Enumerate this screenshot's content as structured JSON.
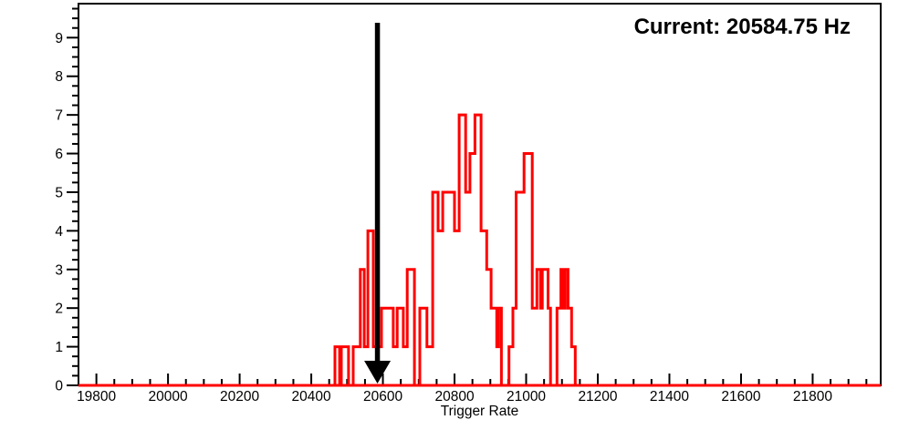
{
  "page": {
    "background": "#ffffff"
  },
  "chart_data": {
    "type": "bar",
    "subtype": "step-histogram",
    "title": "",
    "current_label": "Current: 20584.75 Hz",
    "current_value_hz": 20584.75,
    "xlabel": "Trigger Rate",
    "ylabel": "",
    "xlim": [
      19750,
      21990
    ],
    "ylim": [
      0,
      9.88
    ],
    "x_major_ticks": [
      19800,
      20000,
      20200,
      20400,
      20600,
      20800,
      21000,
      21200,
      21400,
      21600,
      21800
    ],
    "x_minor_step": 50,
    "y_major_ticks": [
      0,
      1,
      2,
      3,
      4,
      5,
      6,
      7,
      8,
      9
    ],
    "y_minor_step": 0.25,
    "grid": "off",
    "legend": "none",
    "line_color": "#ff0000",
    "axis_color": "#000000",
    "arrow_color": "#000000",
    "bins": [
      [
        20466,
        1
      ],
      [
        20479,
        0
      ],
      [
        20484,
        1
      ],
      [
        20504,
        0
      ],
      [
        20517,
        1
      ],
      [
        20537,
        3
      ],
      [
        20548,
        1
      ],
      [
        20558,
        4
      ],
      [
        20573,
        1
      ],
      [
        20596,
        2
      ],
      [
        20629,
        1
      ],
      [
        20640,
        2
      ],
      [
        20657,
        1
      ],
      [
        20668,
        3
      ],
      [
        20688,
        0
      ],
      [
        20703,
        2
      ],
      [
        20723,
        1
      ],
      [
        20739,
        5
      ],
      [
        20754,
        4
      ],
      [
        20767,
        5
      ],
      [
        20800,
        4
      ],
      [
        20813,
        7
      ],
      [
        20831,
        5
      ],
      [
        20843,
        6
      ],
      [
        20857,
        7
      ],
      [
        20874,
        4
      ],
      [
        20890,
        3
      ],
      [
        20902,
        2
      ],
      [
        20918,
        1
      ],
      [
        20923,
        2
      ],
      [
        20931,
        0
      ],
      [
        20952,
        1
      ],
      [
        20963,
        2
      ],
      [
        20972,
        5
      ],
      [
        20994,
        6
      ],
      [
        21017,
        2
      ],
      [
        21030,
        3
      ],
      [
        21040,
        2
      ],
      [
        21045,
        3
      ],
      [
        21061,
        2
      ],
      [
        21068,
        0
      ],
      [
        21086,
        2
      ],
      [
        21097,
        3
      ],
      [
        21104,
        2
      ],
      [
        21109,
        3
      ],
      [
        21117,
        2
      ],
      [
        21127,
        1
      ],
      [
        21137,
        0
      ]
    ]
  }
}
